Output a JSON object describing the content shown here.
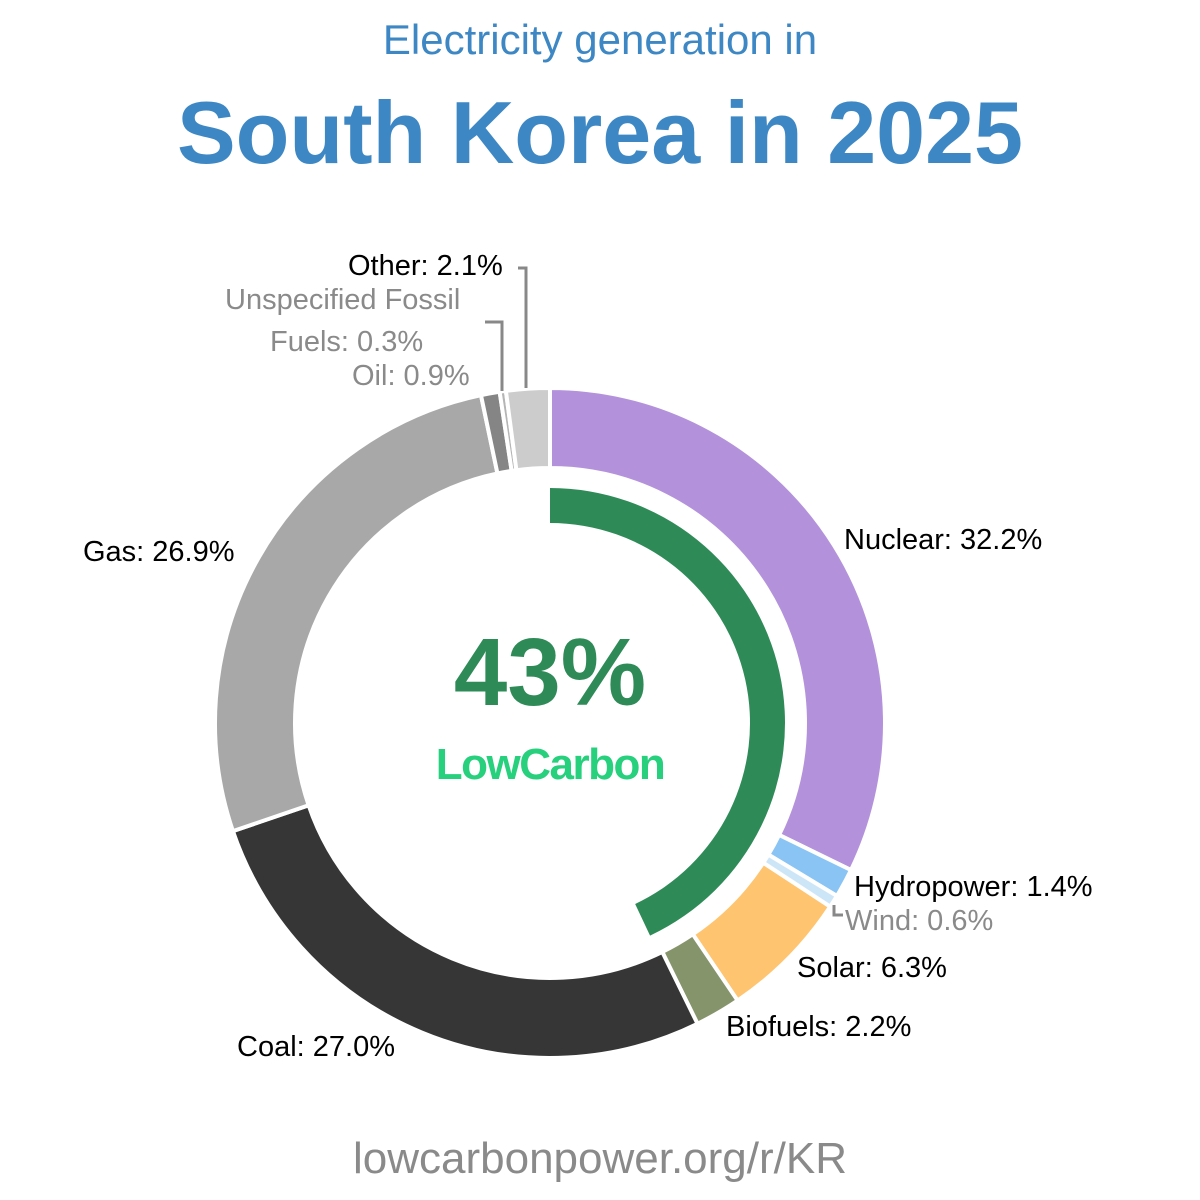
{
  "header": {
    "subtitle": "Electricity generation in",
    "title": "South Korea in 2025"
  },
  "footer": "lowcarbonpower.org/r/KR",
  "center": {
    "value": "43%",
    "brand": "LowCarbon",
    "low_carbon_share": 43,
    "color": "#2e8b57",
    "brand_color": "#27d07c"
  },
  "chart_data": {
    "type": "pie",
    "style": "donut",
    "direction": "clockwise-from-top",
    "slices": [
      {
        "name": "Nuclear",
        "value": 32.2,
        "label": "Nuclear: 32.2%",
        "color": "#b392db"
      },
      {
        "name": "Hydropower",
        "value": 1.4,
        "label": "Hydropower: 1.4%",
        "color": "#89c4f4"
      },
      {
        "name": "Wind",
        "value": 0.6,
        "label": "Wind: 0.6%",
        "color": "#cde6f7"
      },
      {
        "name": "Solar",
        "value": 6.3,
        "label": "Solar: 6.3%",
        "color": "#fec46f"
      },
      {
        "name": "Biofuels",
        "value": 2.2,
        "label": "Biofuels: 2.2%",
        "color": "#86946b"
      },
      {
        "name": "Coal",
        "value": 27.0,
        "label": "Coal: 27.0%",
        "color": "#363636"
      },
      {
        "name": "Gas",
        "value": 26.9,
        "label": "Gas: 26.9%",
        "color": "#a8a8a8"
      },
      {
        "name": "Oil",
        "value": 0.9,
        "label": "Oil: 0.9%",
        "color": "#858585"
      },
      {
        "name": "Unspecified Fossil Fuels",
        "value": 0.3,
        "label": "Unspecified Fossil Fuels: 0.3%",
        "label_lines": [
          "Unspecified Fossil",
          "Fuels: 0.3%"
        ],
        "color": "#b5b5b5"
      },
      {
        "name": "Other",
        "value": 2.1,
        "label": "Other: 2.1%",
        "color": "#cccccc"
      }
    ]
  }
}
